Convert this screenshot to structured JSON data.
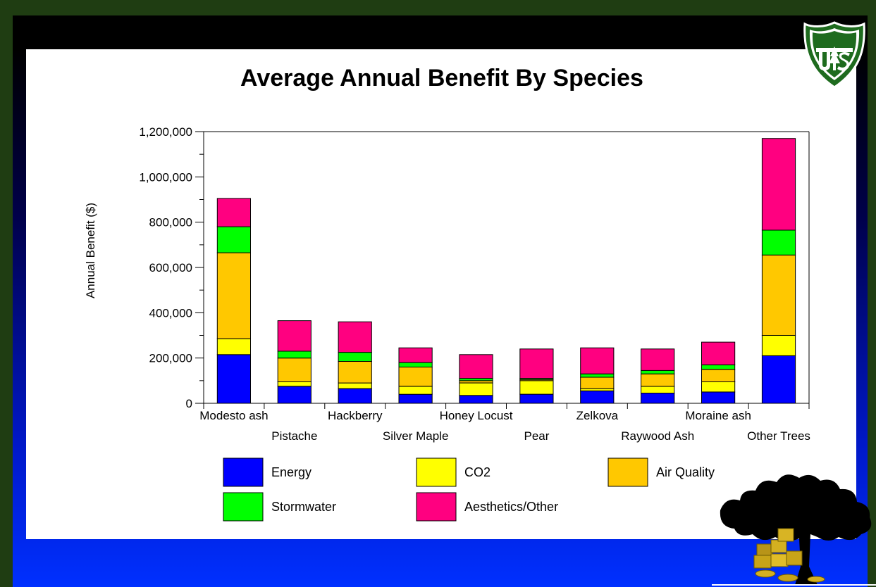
{
  "chart_data": {
    "type": "bar",
    "stacked": true,
    "title": "Average Annual Benefit By Species",
    "xlabel": "",
    "ylabel": "Annual Benefit ($)",
    "ylim": [
      0,
      1200000
    ],
    "yticks": [
      0,
      200000,
      400000,
      600000,
      800000,
      1000000,
      1200000
    ],
    "ytick_labels": [
      "0",
      "200,000",
      "400,000",
      "600,000",
      "800,000",
      "1,000,000",
      "1,200,000"
    ],
    "categories": [
      "Modesto ash",
      "Pistache",
      "Hackberry",
      "Silver Maple",
      "Honey Locust",
      "Pear",
      "Zelkova",
      "Raywood Ash",
      "Moraine ash",
      "Other Trees"
    ],
    "series": [
      {
        "name": "Energy",
        "color": "#0000ff",
        "values": [
          215000,
          75000,
          65000,
          40000,
          35000,
          40000,
          55000,
          45000,
          50000,
          210000
        ]
      },
      {
        "name": "CO2",
        "color": "#ffff00",
        "values": [
          70000,
          20000,
          25000,
          35000,
          55000,
          60000,
          10000,
          30000,
          45000,
          90000
        ]
      },
      {
        "name": "Air Quality",
        "color": "#ffc800",
        "values": [
          380000,
          105000,
          95000,
          85000,
          10000,
          5000,
          50000,
          55000,
          55000,
          355000
        ]
      },
      {
        "name": "Stormwater",
        "color": "#00ff00",
        "values": [
          115000,
          30000,
          40000,
          20000,
          10000,
          5000,
          15000,
          15000,
          20000,
          110000
        ]
      },
      {
        "name": "Aesthetics/Other",
        "color": "#ff0080",
        "values": [
          125000,
          135000,
          135000,
          65000,
          105000,
          130000,
          115000,
          95000,
          100000,
          405000
        ]
      }
    ],
    "grid": false,
    "legend_position": "bottom"
  },
  "colors": {
    "background": "#1f3d12",
    "card": "#ffffff"
  },
  "icons": [
    "usfs-shield-logo",
    "tree-with-gold-coins"
  ]
}
